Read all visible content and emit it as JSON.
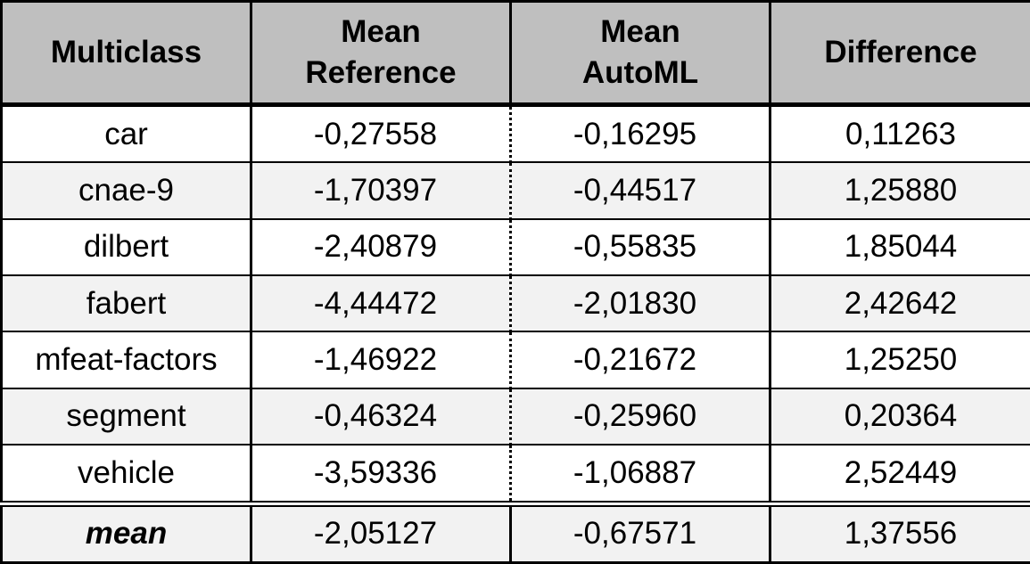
{
  "table": {
    "headers": [
      {
        "lines": [
          "Multiclass"
        ]
      },
      {
        "lines": [
          "Mean",
          "Reference"
        ]
      },
      {
        "lines": [
          "Mean",
          "AutoML"
        ]
      },
      {
        "lines": [
          "Difference"
        ]
      }
    ],
    "rows": [
      {
        "dataset": "car",
        "mean_reference": "-0,27558",
        "mean_automl": "-0,16295",
        "difference": "0,11263"
      },
      {
        "dataset": "cnae-9",
        "mean_reference": "-1,70397",
        "mean_automl": "-0,44517",
        "difference": "1,25880"
      },
      {
        "dataset": "dilbert",
        "mean_reference": "-2,40879",
        "mean_automl": "-0,55835",
        "difference": "1,85044"
      },
      {
        "dataset": "fabert",
        "mean_reference": "-4,44472",
        "mean_automl": "-2,01830",
        "difference": "2,42642"
      },
      {
        "dataset": "mfeat-factors",
        "mean_reference": "-1,46922",
        "mean_automl": "-0,21672",
        "difference": "1,25250"
      },
      {
        "dataset": "segment",
        "mean_reference": "-0,46324",
        "mean_automl": "-0,25960",
        "difference": "0,20364"
      },
      {
        "dataset": "vehicle",
        "mean_reference": "-3,59336",
        "mean_automl": "-1,06887",
        "difference": "2,52449"
      }
    ],
    "summary": {
      "dataset": "mean",
      "mean_reference": "-2,05127",
      "mean_automl": "-0,67571",
      "difference": "1,37556"
    }
  },
  "colors": {
    "header_bg": "#bfbfbf",
    "alt_row_bg": "#f2f2f2",
    "row_bg": "#ffffff",
    "border": "#000000"
  }
}
